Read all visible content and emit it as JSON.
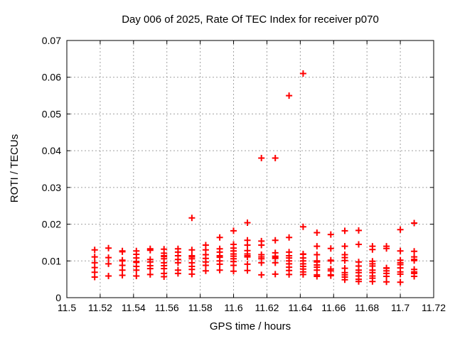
{
  "window": {
    "background": "#ffffff"
  },
  "chart_data": {
    "type": "scatter",
    "title": "Day 006 of 2025, Rate Of TEC Index for receiver p070",
    "xlabel": "GPS time / hours",
    "ylabel": "ROTI / TECUs",
    "xlim": [
      11.5,
      11.72
    ],
    "ylim": [
      0,
      0.07
    ],
    "xticks": [
      11.5,
      11.52,
      11.54,
      11.56,
      11.58,
      11.6,
      11.62,
      11.64,
      11.66,
      11.68,
      11.7,
      11.72
    ],
    "xtick_labels": [
      "11.5",
      "11.52",
      "11.54",
      "11.56",
      "11.58",
      "11.6",
      "11.62",
      "11.64",
      "11.66",
      "11.68",
      "11.7",
      "11.72"
    ],
    "yticks": [
      0,
      0.01,
      0.02,
      0.03,
      0.04,
      0.05,
      0.06,
      0.07
    ],
    "ytick_labels": [
      "0",
      "0.01",
      "0.02",
      "0.03",
      "0.04",
      "0.05",
      "0.06",
      "0.07"
    ],
    "grid": true,
    "grid_style": "dashed",
    "legend": false,
    "marker": {
      "shape": "plus",
      "color": "#ff0000",
      "size": 9
    },
    "axis_color": "#000000",
    "grid_color": "#a0a0a0",
    "series": [
      {
        "name": "ROTI",
        "points": [
          [
            11.5167,
            0.013
          ],
          [
            11.5167,
            0.0111
          ],
          [
            11.5167,
            0.0095
          ],
          [
            11.5167,
            0.0082
          ],
          [
            11.5167,
            0.0069
          ],
          [
            11.5167,
            0.0056
          ],
          [
            11.525,
            0.0135
          ],
          [
            11.525,
            0.0109
          ],
          [
            11.525,
            0.0092
          ],
          [
            11.525,
            0.0059
          ],
          [
            11.5333,
            0.0127
          ],
          [
            11.5333,
            0.0125
          ],
          [
            11.5333,
            0.0102
          ],
          [
            11.5333,
            0.01
          ],
          [
            11.5333,
            0.0088
          ],
          [
            11.5333,
            0.0075
          ],
          [
            11.5333,
            0.0061
          ],
          [
            11.5417,
            0.0127
          ],
          [
            11.5417,
            0.0118
          ],
          [
            11.5417,
            0.0108
          ],
          [
            11.5417,
            0.0098
          ],
          [
            11.5417,
            0.0096
          ],
          [
            11.5417,
            0.0085
          ],
          [
            11.5417,
            0.0075
          ],
          [
            11.5417,
            0.0059
          ],
          [
            11.55,
            0.0133
          ],
          [
            11.55,
            0.0129
          ],
          [
            11.55,
            0.0104
          ],
          [
            11.55,
            0.0097
          ],
          [
            11.55,
            0.0087
          ],
          [
            11.55,
            0.0079
          ],
          [
            11.55,
            0.0063
          ],
          [
            11.5583,
            0.0132
          ],
          [
            11.5583,
            0.0121
          ],
          [
            11.5583,
            0.0114
          ],
          [
            11.5583,
            0.0112
          ],
          [
            11.5583,
            0.0106
          ],
          [
            11.5583,
            0.0095
          ],
          [
            11.5583,
            0.0087
          ],
          [
            11.5583,
            0.0079
          ],
          [
            11.5583,
            0.0066
          ],
          [
            11.5583,
            0.0057
          ],
          [
            11.5667,
            0.0133
          ],
          [
            11.5667,
            0.0124
          ],
          [
            11.5667,
            0.0114
          ],
          [
            11.5667,
            0.0104
          ],
          [
            11.5667,
            0.0095
          ],
          [
            11.5667,
            0.0075
          ],
          [
            11.5667,
            0.0066
          ],
          [
            11.575,
            0.0217
          ],
          [
            11.575,
            0.013
          ],
          [
            11.575,
            0.0114
          ],
          [
            11.575,
            0.0111
          ],
          [
            11.575,
            0.0106
          ],
          [
            11.575,
            0.0095
          ],
          [
            11.575,
            0.0085
          ],
          [
            11.575,
            0.0077
          ],
          [
            11.575,
            0.0064
          ],
          [
            11.5833,
            0.0143
          ],
          [
            11.5833,
            0.013
          ],
          [
            11.5833,
            0.0117
          ],
          [
            11.5833,
            0.0107
          ],
          [
            11.5833,
            0.0097
          ],
          [
            11.5833,
            0.0088
          ],
          [
            11.5833,
            0.0073
          ],
          [
            11.5917,
            0.0164
          ],
          [
            11.5917,
            0.0133
          ],
          [
            11.5917,
            0.0124
          ],
          [
            11.5917,
            0.0114
          ],
          [
            11.5917,
            0.011
          ],
          [
            11.5917,
            0.01
          ],
          [
            11.5917,
            0.0091
          ],
          [
            11.5917,
            0.0075
          ],
          [
            11.6,
            0.0182
          ],
          [
            11.6,
            0.0145
          ],
          [
            11.6,
            0.0135
          ],
          [
            11.6,
            0.0127
          ],
          [
            11.6,
            0.0119
          ],
          [
            11.6,
            0.0113
          ],
          [
            11.6,
            0.0106
          ],
          [
            11.6,
            0.0098
          ],
          [
            11.6,
            0.0088
          ],
          [
            11.6,
            0.0072
          ],
          [
            11.6083,
            0.0204
          ],
          [
            11.6083,
            0.0156
          ],
          [
            11.6083,
            0.0143
          ],
          [
            11.6083,
            0.0128
          ],
          [
            11.6083,
            0.0119
          ],
          [
            11.6083,
            0.0114
          ],
          [
            11.6083,
            0.0111
          ],
          [
            11.6083,
            0.0091
          ],
          [
            11.6083,
            0.0074
          ],
          [
            11.6167,
            0.038
          ],
          [
            11.6167,
            0.0154
          ],
          [
            11.6167,
            0.0143
          ],
          [
            11.6167,
            0.0117
          ],
          [
            11.6167,
            0.0111
          ],
          [
            11.6167,
            0.0106
          ],
          [
            11.6167,
            0.0095
          ],
          [
            11.6167,
            0.0062
          ],
          [
            11.625,
            0.038
          ],
          [
            11.625,
            0.0156
          ],
          [
            11.625,
            0.0122
          ],
          [
            11.625,
            0.0113
          ],
          [
            11.625,
            0.0109
          ],
          [
            11.625,
            0.0107
          ],
          [
            11.625,
            0.0095
          ],
          [
            11.625,
            0.0064
          ],
          [
            11.6333,
            0.055
          ],
          [
            11.6333,
            0.0164
          ],
          [
            11.6333,
            0.0124
          ],
          [
            11.6333,
            0.0114
          ],
          [
            11.6333,
            0.0108
          ],
          [
            11.6333,
            0.01
          ],
          [
            11.6333,
            0.0092
          ],
          [
            11.6333,
            0.0083
          ],
          [
            11.6333,
            0.0074
          ],
          [
            11.6333,
            0.0063
          ],
          [
            11.6417,
            0.061
          ],
          [
            11.6417,
            0.0193
          ],
          [
            11.6417,
            0.0119
          ],
          [
            11.6417,
            0.0118
          ],
          [
            11.6417,
            0.0108
          ],
          [
            11.6417,
            0.01
          ],
          [
            11.6417,
            0.0092
          ],
          [
            11.6417,
            0.0085
          ],
          [
            11.6417,
            0.0078
          ],
          [
            11.6417,
            0.007
          ],
          [
            11.6417,
            0.0063
          ],
          [
            11.65,
            0.0177
          ],
          [
            11.65,
            0.014
          ],
          [
            11.65,
            0.0117
          ],
          [
            11.65,
            0.01
          ],
          [
            11.65,
            0.0097
          ],
          [
            11.65,
            0.0089
          ],
          [
            11.65,
            0.0083
          ],
          [
            11.65,
            0.0075
          ],
          [
            11.65,
            0.0062
          ],
          [
            11.65,
            0.0058
          ],
          [
            11.6583,
            0.0172
          ],
          [
            11.6583,
            0.0134
          ],
          [
            11.6583,
            0.0102
          ],
          [
            11.6583,
            0.01
          ],
          [
            11.6583,
            0.0078
          ],
          [
            11.6583,
            0.0073
          ],
          [
            11.6583,
            0.0062
          ],
          [
            11.6583,
            0.006
          ],
          [
            11.6667,
            0.0182
          ],
          [
            11.6667,
            0.014
          ],
          [
            11.6667,
            0.0117
          ],
          [
            11.6667,
            0.0109
          ],
          [
            11.6667,
            0.0101
          ],
          [
            11.6667,
            0.008
          ],
          [
            11.6667,
            0.0068
          ],
          [
            11.6667,
            0.0062
          ],
          [
            11.6667,
            0.0056
          ],
          [
            11.6667,
            0.0049
          ],
          [
            11.675,
            0.0183
          ],
          [
            11.675,
            0.0145
          ],
          [
            11.675,
            0.0097
          ],
          [
            11.675,
            0.0086
          ],
          [
            11.675,
            0.0075
          ],
          [
            11.675,
            0.0068
          ],
          [
            11.675,
            0.0059
          ],
          [
            11.675,
            0.005
          ],
          [
            11.675,
            0.0044
          ],
          [
            11.6833,
            0.014
          ],
          [
            11.6833,
            0.0131
          ],
          [
            11.6833,
            0.0099
          ],
          [
            11.6833,
            0.0092
          ],
          [
            11.6833,
            0.0086
          ],
          [
            11.6833,
            0.0075
          ],
          [
            11.6833,
            0.0068
          ],
          [
            11.6833,
            0.0059
          ],
          [
            11.6833,
            0.0053
          ],
          [
            11.6833,
            0.0044
          ],
          [
            11.6917,
            0.014
          ],
          [
            11.6917,
            0.0134
          ],
          [
            11.6917,
            0.0081
          ],
          [
            11.6917,
            0.008
          ],
          [
            11.6917,
            0.0073
          ],
          [
            11.6917,
            0.0066
          ],
          [
            11.6917,
            0.0058
          ],
          [
            11.6917,
            0.0043
          ],
          [
            11.7,
            0.0185
          ],
          [
            11.7,
            0.0127
          ],
          [
            11.7,
            0.0102
          ],
          [
            11.7,
            0.0095
          ],
          [
            11.7,
            0.009
          ],
          [
            11.7,
            0.0081
          ],
          [
            11.7,
            0.007
          ],
          [
            11.7,
            0.0064
          ],
          [
            11.7,
            0.0042
          ],
          [
            11.7083,
            0.0203
          ],
          [
            11.7083,
            0.0126
          ],
          [
            11.7083,
            0.0111
          ],
          [
            11.7083,
            0.0104
          ],
          [
            11.7083,
            0.0101
          ],
          [
            11.7083,
            0.0077
          ],
          [
            11.7083,
            0.007
          ],
          [
            11.7083,
            0.0066
          ],
          [
            11.7083,
            0.0058
          ]
        ]
      }
    ]
  }
}
